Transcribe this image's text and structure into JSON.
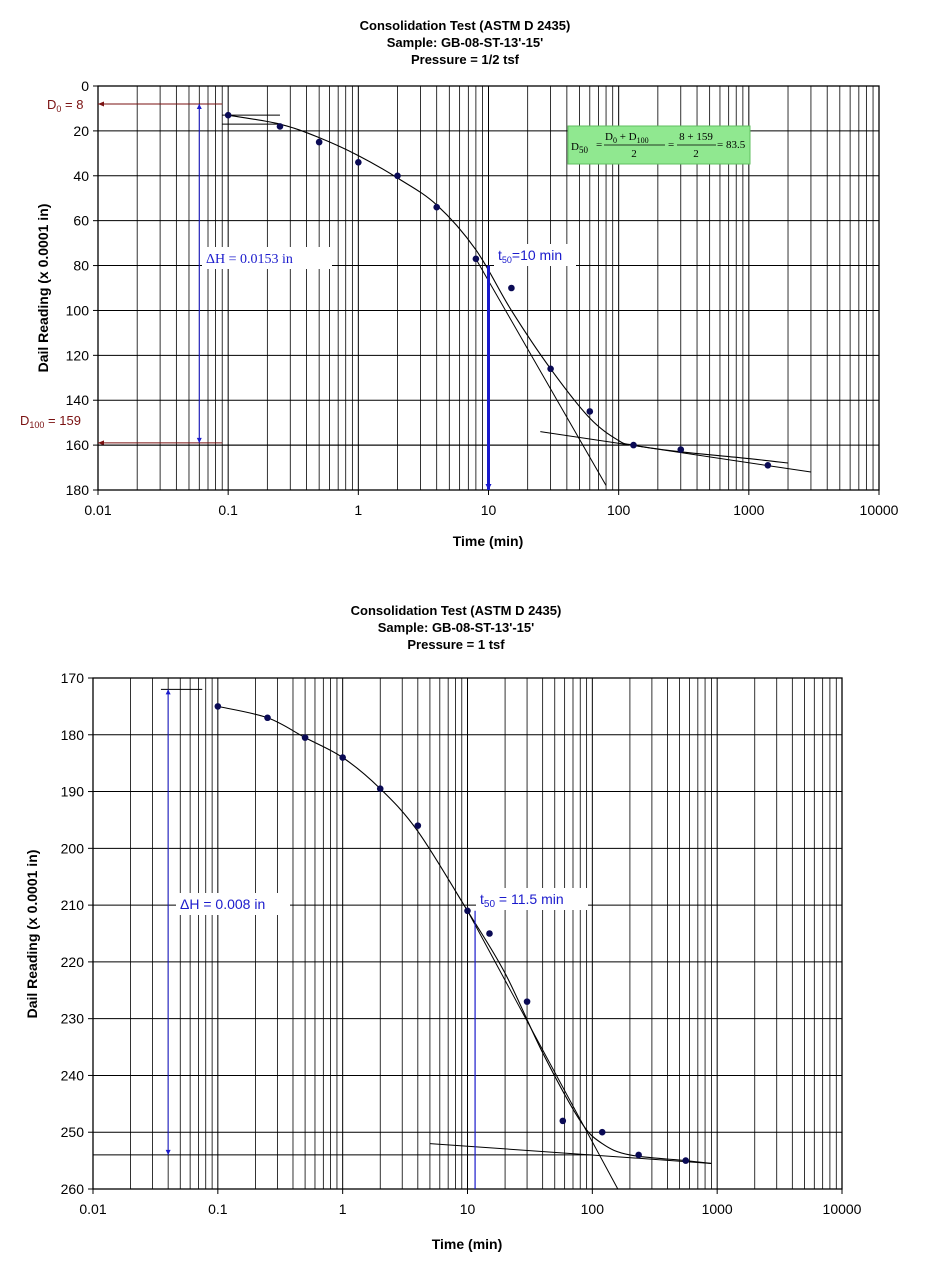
{
  "colors": {
    "grid": "#000000",
    "marker": "#0a0a55",
    "annotation_blue": "#1a1acc",
    "annotation_red": "#7a1111",
    "formula_bg": "#90e890"
  },
  "chart_data": [
    {
      "type": "scatter",
      "xscale": "log",
      "title": "Consolidation Test (ASTM D 2435)",
      "subtitle1": "Sample: GB-08-ST-13'-15'",
      "subtitle2": "Pressure = 1/2 tsf",
      "xlabel": "Time (min)",
      "ylabel": "Dail Reading (x 0.0001 in)",
      "xlim": [
        0.01,
        10000
      ],
      "ylim": [
        0,
        180
      ],
      "y_inverted": true,
      "xticks": [
        "0.01",
        "0.1",
        "1",
        "10",
        "100",
        "1000",
        "10000"
      ],
      "yticks": [
        "0",
        "20",
        "40",
        "60",
        "80",
        "100",
        "120",
        "140",
        "160",
        "180"
      ],
      "grid": true,
      "points": {
        "x": [
          0.1,
          0.25,
          0.5,
          1,
          2,
          4,
          8,
          15,
          30,
          60,
          130,
          300,
          1400
        ],
        "y": [
          13,
          18,
          25,
          34,
          40,
          54,
          77,
          90,
          126,
          145,
          160,
          162,
          169
        ]
      },
      "curve": {
        "x": [
          0.1,
          0.25,
          0.5,
          1,
          2,
          4,
          8,
          15,
          30,
          60,
          100,
          130,
          300,
          1000,
          2000
        ],
        "y": [
          13,
          17,
          23,
          31,
          41,
          53,
          73,
          100,
          126,
          148,
          158,
          160,
          163,
          166,
          168
        ]
      },
      "tangent_steep": {
        "x": [
          8,
          80
        ],
        "y": [
          77,
          178
        ]
      },
      "tangent_flat": {
        "x": [
          25,
          3000
        ],
        "y": [
          154,
          172
        ]
      },
      "top_tick": {
        "x": [
          0.09,
          0.25
        ],
        "y": [
          13,
          13
        ]
      },
      "top_tick2": {
        "x": [
          0.09,
          0.25
        ],
        "y": [
          17,
          17
        ]
      },
      "d0_value": 8,
      "d100_value": 159,
      "t50_value": 10,
      "dh_x": 0.06,
      "annotations": {
        "d0": "D",
        "d0_sub": "0",
        "d0_rest": " = 8",
        "d100": "D",
        "d100_sub": "100",
        "d100_rest": " = 159",
        "dh": "ΔH =  0.0153 in",
        "t50": "t",
        "t50_sub": "50",
        "t50_rest": "=10 min",
        "formula_lhs": "D",
        "formula_lhs_sub": "50",
        "formula_num1": "D",
        "formula_num1_sub": "0",
        "formula_num_mid": " + D",
        "formula_num2_sub": "100",
        "formula_den": "2",
        "formula_num_b": "8 + 159",
        "formula_den_b": "2",
        "formula_result": "= 83.5"
      }
    },
    {
      "type": "scatter",
      "xscale": "log",
      "title": "Consolidation Test (ASTM D 2435)",
      "subtitle1": "Sample: GB-08-ST-13'-15'",
      "subtitle2": "Pressure = 1 tsf",
      "xlabel": "Time (min)",
      "ylabel": "Dail Reading (x 0.0001 in)",
      "xlim": [
        0.01,
        10000
      ],
      "ylim": [
        170,
        260
      ],
      "y_inverted": true,
      "xticks": [
        "0.01",
        "0.1",
        "1",
        "10",
        "100",
        "1000",
        "10000"
      ],
      "yticks": [
        "170",
        "180",
        "190",
        "200",
        "210",
        "220",
        "230",
        "240",
        "250",
        "260"
      ],
      "grid": true,
      "points": {
        "x": [
          0.1,
          0.25,
          0.5,
          1,
          2,
          4,
          10,
          15,
          30,
          58,
          120,
          235,
          560
        ],
        "y": [
          175,
          177,
          180.5,
          184,
          189.5,
          196,
          211,
          215,
          227,
          248,
          250,
          254,
          255
        ]
      },
      "curve": {
        "x": [
          0.1,
          0.25,
          0.5,
          1,
          2,
          4,
          10,
          20,
          40,
          80,
          120,
          200,
          560,
          900
        ],
        "y": [
          175,
          177,
          180.5,
          184,
          189.5,
          197,
          211,
          222,
          236,
          248,
          252,
          254,
          255,
          255.5
        ]
      },
      "tangent_steep": {
        "x": [
          10,
          160
        ],
        "y": [
          211,
          260
        ]
      },
      "tangent_flat": {
        "x": [
          5,
          900
        ],
        "y": [
          252,
          255.5
        ]
      },
      "top_tick": {
        "x": [
          0.035,
          0.075
        ],
        "y": [
          172,
          172
        ]
      },
      "bottom_tick": {
        "x": [
          0.01,
          100
        ],
        "y": [
          254,
          254
        ]
      },
      "t50_value": 11.5,
      "dh_x": 0.04,
      "annotations": {
        "dh": "ΔH = 0.008 in",
        "t50": "t",
        "t50_sub": "50",
        "t50_rest": " = 11.5 min"
      }
    }
  ]
}
